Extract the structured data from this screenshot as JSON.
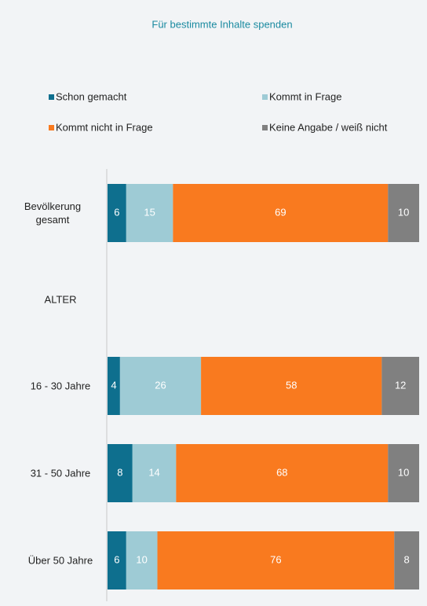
{
  "chart_data": {
    "type": "stacked_bar_horizontal",
    "title": "Für bestimmte Inhalte spenden",
    "categories": [
      "Bevölkerung gesamt",
      "ALTER",
      "16 - 30 Jahre",
      "31 - 50 Jahre",
      "Über 50 Jahre"
    ],
    "series": [
      {
        "name": "Schon gemacht",
        "color": "#0e6f8e",
        "values": [
          6,
          null,
          4,
          8,
          6
        ]
      },
      {
        "name": "Kommt in Frage",
        "color": "#9ecbd5",
        "values": [
          15,
          null,
          26,
          14,
          10
        ]
      },
      {
        "name": "Kommt nicht in Frage",
        "color": "#f97a1f",
        "values": [
          69,
          null,
          58,
          68,
          76
        ]
      },
      {
        "name": "Keine Angabe / weiß nicht",
        "color": "#808080",
        "values": [
          10,
          null,
          12,
          10,
          8
        ]
      }
    ],
    "xlim": [
      0,
      100
    ]
  }
}
